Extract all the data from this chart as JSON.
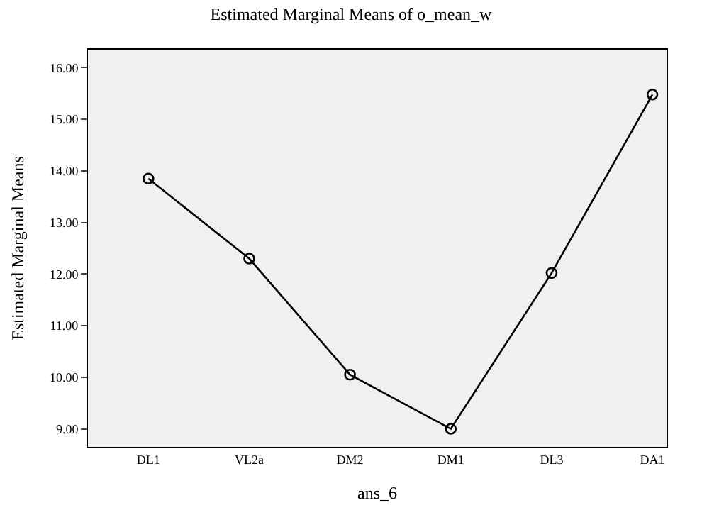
{
  "chart_data": {
    "type": "line",
    "title": "Estimated Marginal Means of o_mean_w",
    "xlabel": "ans_6",
    "ylabel": "Estimated Marginal Means",
    "categories": [
      "DL1",
      "VL2a",
      "DM2",
      "DM1",
      "DL3",
      "DA1"
    ],
    "series": [
      {
        "color": "#000000",
        "values": [
          13.85,
          12.3,
          10.05,
          9.0,
          12.02,
          15.48
        ]
      }
    ],
    "ylim": [
      8.65,
      16.35
    ],
    "yticks": [
      {
        "value": 9,
        "label": "9.00"
      },
      {
        "value": 10,
        "label": "10.00"
      },
      {
        "value": 11,
        "label": "11.00"
      },
      {
        "value": 12,
        "label": "12.00"
      },
      {
        "value": 13,
        "label": "13.00"
      },
      {
        "value": 14,
        "label": "14.00"
      },
      {
        "value": 15,
        "label": "15.00"
      },
      {
        "value": 16,
        "label": "16.00"
      }
    ],
    "grid": false,
    "marker": "circle",
    "line_style": "solid"
  }
}
